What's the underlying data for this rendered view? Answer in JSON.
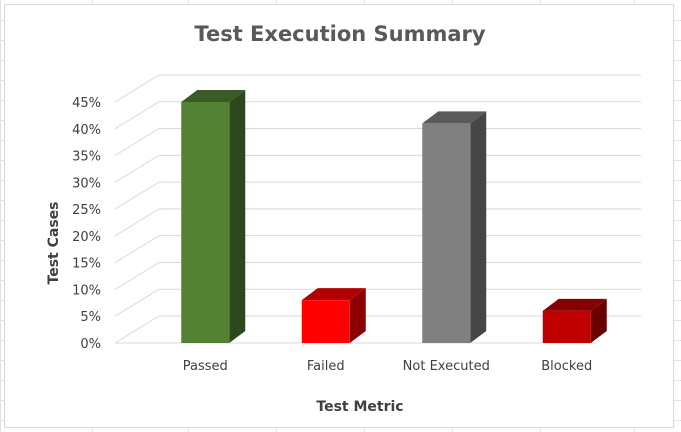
{
  "chart_data": {
    "type": "bar",
    "title": "Test Execution Summary",
    "xlabel": "Test Metric",
    "ylabel": "Test Cases",
    "categories": [
      "Passed",
      "Failed",
      "Not Executed",
      "Blocked"
    ],
    "values": [
      0.45,
      0.08,
      0.41,
      0.06
    ],
    "ylim": [
      0,
      0.45
    ],
    "yticks": [
      "0%",
      "5%",
      "10%",
      "15%",
      "20%",
      "25%",
      "30%",
      "35%",
      "40%",
      "45%"
    ],
    "grid": true,
    "legend": "none",
    "style": "3d-column",
    "colors": [
      "#548235",
      "#ff0000",
      "#808080",
      "#c00000"
    ]
  }
}
